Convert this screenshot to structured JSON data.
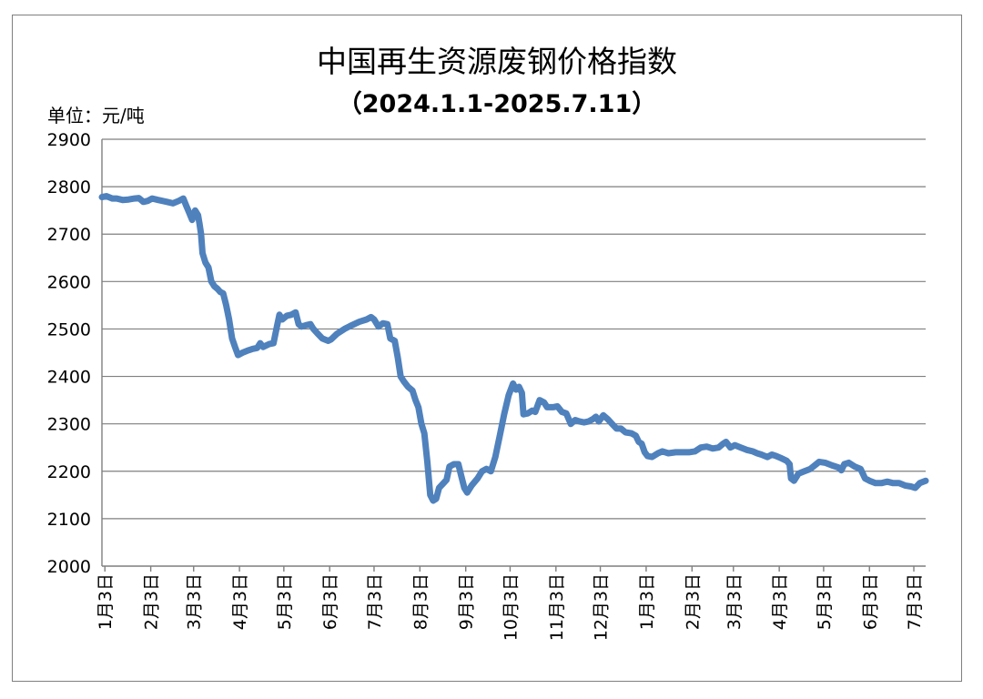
{
  "chart_data": {
    "type": "line",
    "title": "中国再生资源废钢价格指数",
    "subtitle": "（2024.1.1-2025.7.11）",
    "unit_label": "单位：元/吨",
    "ylim": [
      2000,
      2900
    ],
    "yticks": [
      "2000",
      "2100",
      "2200",
      "2300",
      "2400",
      "2500",
      "2600",
      "2700",
      "2800",
      "2900"
    ],
    "grid": true,
    "legend": "none",
    "line_color": "#4f81bd",
    "x_tick_labels": [
      "1月3日",
      "2月3日",
      "3月3日",
      "4月3日",
      "5月3日",
      "6月3日",
      "7月3日",
      "8月3日",
      "9月3日",
      "10月3日",
      "11月3日",
      "12月3日",
      "1月3日",
      "2月3日",
      "3月3日",
      "4月3日",
      "5月3日",
      "6月3日",
      "7月3日"
    ],
    "x_tick_dates": [
      "2024-01-03",
      "2024-02-03",
      "2024-03-03",
      "2024-04-03",
      "2024-05-03",
      "2024-06-03",
      "2024-07-03",
      "2024-08-03",
      "2024-09-03",
      "2024-10-03",
      "2024-11-03",
      "2024-12-03",
      "2025-01-03",
      "2025-02-03",
      "2025-03-03",
      "2025-04-03",
      "2025-05-03",
      "2025-06-03",
      "2025-07-03"
    ],
    "series": [
      {
        "points": [
          [
            "2024-01-01",
            2778
          ],
          [
            "2024-01-04",
            2780
          ],
          [
            "2024-01-08",
            2775
          ],
          [
            "2024-01-11",
            2775
          ],
          [
            "2024-01-15",
            2772
          ],
          [
            "2024-01-19",
            2773
          ],
          [
            "2024-01-23",
            2775
          ],
          [
            "2024-01-26",
            2776
          ],
          [
            "2024-01-29",
            2768
          ],
          [
            "2024-02-01",
            2770
          ],
          [
            "2024-02-04",
            2775
          ],
          [
            "2024-02-08",
            2772
          ],
          [
            "2024-02-14",
            2768
          ],
          [
            "2024-02-18",
            2765
          ],
          [
            "2024-02-22",
            2770
          ],
          [
            "2024-02-25",
            2775
          ],
          [
            "2024-02-27",
            2760
          ],
          [
            "2024-02-29",
            2745
          ],
          [
            "2024-03-02",
            2730
          ],
          [
            "2024-03-04",
            2750
          ],
          [
            "2024-03-06",
            2740
          ],
          [
            "2024-03-07",
            2722
          ],
          [
            "2024-03-08",
            2700
          ],
          [
            "2024-03-09",
            2660
          ],
          [
            "2024-03-11",
            2640
          ],
          [
            "2024-03-13",
            2630
          ],
          [
            "2024-03-15",
            2600
          ],
          [
            "2024-03-17",
            2590
          ],
          [
            "2024-03-19",
            2585
          ],
          [
            "2024-03-21",
            2578
          ],
          [
            "2024-03-23",
            2575
          ],
          [
            "2024-03-25",
            2550
          ],
          [
            "2024-03-27",
            2520
          ],
          [
            "2024-03-29",
            2480
          ],
          [
            "2024-03-31",
            2462
          ],
          [
            "2024-04-02",
            2445
          ],
          [
            "2024-04-05",
            2450
          ],
          [
            "2024-04-09",
            2455
          ],
          [
            "2024-04-12",
            2458
          ],
          [
            "2024-04-15",
            2460
          ],
          [
            "2024-04-17",
            2470
          ],
          [
            "2024-04-19",
            2462
          ],
          [
            "2024-04-23",
            2468
          ],
          [
            "2024-04-26",
            2470
          ],
          [
            "2024-04-28",
            2500
          ],
          [
            "2024-04-30",
            2530
          ],
          [
            "2024-05-02",
            2520
          ],
          [
            "2024-05-05",
            2528
          ],
          [
            "2024-05-08",
            2530
          ],
          [
            "2024-05-11",
            2535
          ],
          [
            "2024-05-13",
            2510
          ],
          [
            "2024-05-15",
            2505
          ],
          [
            "2024-05-18",
            2508
          ],
          [
            "2024-05-21",
            2510
          ],
          [
            "2024-05-23",
            2500
          ],
          [
            "2024-05-26",
            2490
          ],
          [
            "2024-05-29",
            2480
          ],
          [
            "2024-06-02",
            2475
          ],
          [
            "2024-06-04",
            2478
          ],
          [
            "2024-06-08",
            2490
          ],
          [
            "2024-06-13",
            2500
          ],
          [
            "2024-06-18",
            2508
          ],
          [
            "2024-06-23",
            2515
          ],
          [
            "2024-06-28",
            2520
          ],
          [
            "2024-07-01",
            2525
          ],
          [
            "2024-07-03",
            2520
          ],
          [
            "2024-07-06",
            2505
          ],
          [
            "2024-07-09",
            2512
          ],
          [
            "2024-07-12",
            2510
          ],
          [
            "2024-07-14",
            2480
          ],
          [
            "2024-07-17",
            2475
          ],
          [
            "2024-07-19",
            2440
          ],
          [
            "2024-07-21",
            2400
          ],
          [
            "2024-07-23",
            2390
          ],
          [
            "2024-07-26",
            2378
          ],
          [
            "2024-07-29",
            2370
          ],
          [
            "2024-07-31",
            2350
          ],
          [
            "2024-08-02",
            2335
          ],
          [
            "2024-08-04",
            2300
          ],
          [
            "2024-08-06",
            2280
          ],
          [
            "2024-08-08",
            2220
          ],
          [
            "2024-08-10",
            2150
          ],
          [
            "2024-08-12",
            2138
          ],
          [
            "2024-08-14",
            2142
          ],
          [
            "2024-08-16",
            2165
          ],
          [
            "2024-08-19",
            2175
          ],
          [
            "2024-08-21",
            2182
          ],
          [
            "2024-08-23",
            2210
          ],
          [
            "2024-08-26",
            2215
          ],
          [
            "2024-08-29",
            2215
          ],
          [
            "2024-08-31",
            2190
          ],
          [
            "2024-09-02",
            2165
          ],
          [
            "2024-09-04",
            2155
          ],
          [
            "2024-09-07",
            2170
          ],
          [
            "2024-09-11",
            2185
          ],
          [
            "2024-09-14",
            2200
          ],
          [
            "2024-09-17",
            2205
          ],
          [
            "2024-09-20",
            2200
          ],
          [
            "2024-09-23",
            2230
          ],
          [
            "2024-09-26",
            2275
          ],
          [
            "2024-09-29",
            2320
          ],
          [
            "2024-10-02",
            2360
          ],
          [
            "2024-10-05",
            2385
          ],
          [
            "2024-10-07",
            2372
          ],
          [
            "2024-10-09",
            2378
          ],
          [
            "2024-10-11",
            2365
          ],
          [
            "2024-10-12",
            2320
          ],
          [
            "2024-10-15",
            2322
          ],
          [
            "2024-10-18",
            2328
          ],
          [
            "2024-10-20",
            2325
          ],
          [
            "2024-10-23",
            2350
          ],
          [
            "2024-10-26",
            2345
          ],
          [
            "2024-10-28",
            2335
          ],
          [
            "2024-11-01",
            2335
          ],
          [
            "2024-11-04",
            2337
          ],
          [
            "2024-11-07",
            2325
          ],
          [
            "2024-11-10",
            2322
          ],
          [
            "2024-11-13",
            2300
          ],
          [
            "2024-11-16",
            2308
          ],
          [
            "2024-11-19",
            2305
          ],
          [
            "2024-11-22",
            2303
          ],
          [
            "2024-11-25",
            2305
          ],
          [
            "2024-11-28",
            2310
          ],
          [
            "2024-11-30",
            2315
          ],
          [
            "2024-12-02",
            2305
          ],
          [
            "2024-12-05",
            2318
          ],
          [
            "2024-12-08",
            2310
          ],
          [
            "2024-12-11",
            2300
          ],
          [
            "2024-12-14",
            2290
          ],
          [
            "2024-12-17",
            2290
          ],
          [
            "2024-12-20",
            2282
          ],
          [
            "2024-12-24",
            2280
          ],
          [
            "2024-12-27",
            2275
          ],
          [
            "2024-12-29",
            2262
          ],
          [
            "2024-12-31",
            2258
          ],
          [
            "2025-01-02",
            2240
          ],
          [
            "2025-01-04",
            2232
          ],
          [
            "2025-01-07",
            2230
          ],
          [
            "2025-01-11",
            2238
          ],
          [
            "2025-01-14",
            2242
          ],
          [
            "2025-01-18",
            2238
          ],
          [
            "2025-01-23",
            2240
          ],
          [
            "2025-01-27",
            2240
          ],
          [
            "2025-02-01",
            2240
          ],
          [
            "2025-02-05",
            2242
          ],
          [
            "2025-02-09",
            2250
          ],
          [
            "2025-02-13",
            2252
          ],
          [
            "2025-02-17",
            2248
          ],
          [
            "2025-02-21",
            2250
          ],
          [
            "2025-02-24",
            2258
          ],
          [
            "2025-02-26",
            2262
          ],
          [
            "2025-03-01",
            2250
          ],
          [
            "2025-03-04",
            2255
          ],
          [
            "2025-03-08",
            2250
          ],
          [
            "2025-03-12",
            2245
          ],
          [
            "2025-03-16",
            2242
          ],
          [
            "2025-03-19",
            2238
          ],
          [
            "2025-03-22",
            2235
          ],
          [
            "2025-03-26",
            2230
          ],
          [
            "2025-03-29",
            2235
          ],
          [
            "2025-04-01",
            2232
          ],
          [
            "2025-04-04",
            2228
          ],
          [
            "2025-04-08",
            2222
          ],
          [
            "2025-04-10",
            2215
          ],
          [
            "2025-04-11",
            2185
          ],
          [
            "2025-04-13",
            2180
          ],
          [
            "2025-04-16",
            2195
          ],
          [
            "2025-04-20",
            2200
          ],
          [
            "2025-04-24",
            2205
          ],
          [
            "2025-04-28",
            2215
          ],
          [
            "2025-04-30",
            2220
          ],
          [
            "2025-05-04",
            2218
          ],
          [
            "2025-05-09",
            2212
          ],
          [
            "2025-05-13",
            2208
          ],
          [
            "2025-05-15",
            2202
          ],
          [
            "2025-05-17",
            2215
          ],
          [
            "2025-05-20",
            2218
          ],
          [
            "2025-05-24",
            2210
          ],
          [
            "2025-05-28",
            2205
          ],
          [
            "2025-05-31",
            2185
          ],
          [
            "2025-06-03",
            2180
          ],
          [
            "2025-06-07",
            2175
          ],
          [
            "2025-06-11",
            2175
          ],
          [
            "2025-06-15",
            2178
          ],
          [
            "2025-06-19",
            2175
          ],
          [
            "2025-06-23",
            2175
          ],
          [
            "2025-06-27",
            2170
          ],
          [
            "2025-07-01",
            2168
          ],
          [
            "2025-07-04",
            2165
          ],
          [
            "2025-07-07",
            2175
          ],
          [
            "2025-07-11",
            2180
          ]
        ]
      }
    ]
  }
}
